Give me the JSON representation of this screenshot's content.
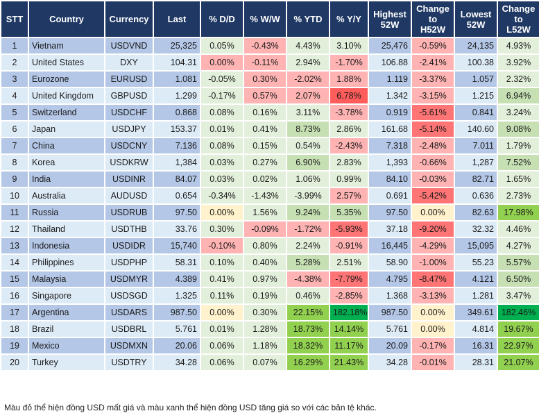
{
  "headers": [
    "STT",
    "Country",
    "Currency",
    "Last",
    "% D/D",
    "% W/W",
    "% YTD",
    "% Y/Y",
    "Highest 52W",
    "Change to H52W",
    "Lowest 52W",
    "Change to L52W"
  ],
  "rows": [
    {
      "stt": "1",
      "country": "Vietnam",
      "currency": "USDVND",
      "last": "25,325",
      "dd": [
        "0.05%",
        "g"
      ],
      "ww": [
        "-0.43%",
        "r"
      ],
      "ytd": [
        "4.43%",
        "g"
      ],
      "yy": [
        "3.10%",
        "g"
      ],
      "high": "25,476",
      "chh": [
        "-0.59%",
        "r"
      ],
      "low": "24,135",
      "chl": [
        "4.93%",
        "g"
      ]
    },
    {
      "stt": "2",
      "country": "United States",
      "currency": "DXY",
      "last": "104.31",
      "dd": [
        "0.00%",
        "r"
      ],
      "ww": [
        "-0.11%",
        "r"
      ],
      "ytd": [
        "2.94%",
        "g"
      ],
      "yy": [
        "-1.70%",
        "r"
      ],
      "high": "106.88",
      "chh": [
        "-2.41%",
        "r"
      ],
      "low": "100.38",
      "chl": [
        "3.92%",
        "g"
      ]
    },
    {
      "stt": "3",
      "country": "Eurozone",
      "currency": "EURUSD",
      "last": "1.081",
      "dd": [
        "-0.05%",
        "g"
      ],
      "ww": [
        "0.30%",
        "r"
      ],
      "ytd": [
        "-2.02%",
        "r"
      ],
      "yy": [
        "1.88%",
        "r"
      ],
      "high": "1.119",
      "chh": [
        "-3.37%",
        "r"
      ],
      "low": "1.057",
      "chl": [
        "2.32%",
        "g"
      ]
    },
    {
      "stt": "4",
      "country": "United Kingdom",
      "currency": "GBPUSD",
      "last": "1.299",
      "dd": [
        "-0.17%",
        "g"
      ],
      "ww": [
        "0.57%",
        "r"
      ],
      "ytd": [
        "2.07%",
        "r"
      ],
      "yy": [
        "6.78%",
        "RR"
      ],
      "high": "1.342",
      "chh": [
        "-3.15%",
        "r"
      ],
      "low": "1.215",
      "chl": [
        "6.94%",
        "G"
      ]
    },
    {
      "stt": "5",
      "country": "Switzerland",
      "currency": "USDCHF",
      "last": "0.868",
      "dd": [
        "0.08%",
        "g"
      ],
      "ww": [
        "0.16%",
        "g"
      ],
      "ytd": [
        "3.11%",
        "g"
      ],
      "yy": [
        "-3.78%",
        "r"
      ],
      "high": "0.919",
      "chh": [
        "-5.61%",
        "R"
      ],
      "low": "0.841",
      "chl": [
        "3.24%",
        "g"
      ]
    },
    {
      "stt": "6",
      "country": "Japan",
      "currency": "USDJPY",
      "last": "153.37",
      "dd": [
        "0.01%",
        "g"
      ],
      "ww": [
        "0.41%",
        "g"
      ],
      "ytd": [
        "8.73%",
        "G"
      ],
      "yy": [
        "2.86%",
        "g"
      ],
      "high": "161.68",
      "chh": [
        "-5.14%",
        "R"
      ],
      "low": "140.60",
      "chl": [
        "9.08%",
        "G"
      ]
    },
    {
      "stt": "7",
      "country": "China",
      "currency": "USDCNY",
      "last": "7.136",
      "dd": [
        "0.08%",
        "g"
      ],
      "ww": [
        "0.15%",
        "g"
      ],
      "ytd": [
        "0.54%",
        "g"
      ],
      "yy": [
        "-2.43%",
        "r"
      ],
      "high": "7.318",
      "chh": [
        "-2.48%",
        "r"
      ],
      "low": "7.011",
      "chl": [
        "1.79%",
        "g"
      ]
    },
    {
      "stt": "8",
      "country": "Korea",
      "currency": "USDKRW",
      "last": "1,384",
      "dd": [
        "0.03%",
        "g"
      ],
      "ww": [
        "0.27%",
        "g"
      ],
      "ytd": [
        "6.90%",
        "G"
      ],
      "yy": [
        "2.83%",
        "g"
      ],
      "high": "1,393",
      "chh": [
        "-0.66%",
        "r"
      ],
      "low": "1,287",
      "chl": [
        "7.52%",
        "G"
      ]
    },
    {
      "stt": "9",
      "country": "India",
      "currency": "USDINR",
      "last": "84.07",
      "dd": [
        "0.03%",
        "g"
      ],
      "ww": [
        "0.02%",
        "g"
      ],
      "ytd": [
        "1.06%",
        "g"
      ],
      "yy": [
        "0.99%",
        "g"
      ],
      "high": "84.10",
      "chh": [
        "-0.03%",
        "r"
      ],
      "low": "82.71",
      "chl": [
        "1.65%",
        "g"
      ]
    },
    {
      "stt": "10",
      "country": "Australia",
      "currency": "AUDUSD",
      "last": "0.654",
      "dd": [
        "-0.34%",
        "g"
      ],
      "ww": [
        "-1.43%",
        "g"
      ],
      "ytd": [
        "-3.99%",
        "g"
      ],
      "yy": [
        "2.57%",
        "r"
      ],
      "high": "0.691",
      "chh": [
        "-5.42%",
        "R"
      ],
      "low": "0.636",
      "chl": [
        "2.73%",
        "g"
      ]
    },
    {
      "stt": "11",
      "country": "Russia",
      "currency": "USDRUB",
      "last": "97.50",
      "dd": [
        "0.00%",
        "y"
      ],
      "ww": [
        "1.56%",
        "g"
      ],
      "ytd": [
        "9.24%",
        "G"
      ],
      "yy": [
        "5.35%",
        "G"
      ],
      "high": "97.50",
      "chh": [
        "0.00%",
        "y"
      ],
      "low": "82.63",
      "chl": [
        "17.98%",
        "GG"
      ]
    },
    {
      "stt": "12",
      "country": "Thailand",
      "currency": "USDTHB",
      "last": "33.76",
      "dd": [
        "0.30%",
        "g"
      ],
      "ww": [
        "-0.09%",
        "r"
      ],
      "ytd": [
        "-1.72%",
        "r"
      ],
      "yy": [
        "-5.93%",
        "R"
      ],
      "high": "37.18",
      "chh": [
        "-9.20%",
        "R"
      ],
      "low": "32.32",
      "chl": [
        "4.46%",
        "g"
      ]
    },
    {
      "stt": "13",
      "country": "Indonesia",
      "currency": "USDIDR",
      "last": "15,740",
      "dd": [
        "-0.10%",
        "r"
      ],
      "ww": [
        "0.80%",
        "g"
      ],
      "ytd": [
        "2.24%",
        "g"
      ],
      "yy": [
        "-0.91%",
        "r"
      ],
      "high": "16,445",
      "chh": [
        "-4.29%",
        "r"
      ],
      "low": "15,095",
      "chl": [
        "4.27%",
        "g"
      ]
    },
    {
      "stt": "14",
      "country": "Philippines",
      "currency": "USDPHP",
      "last": "58.31",
      "dd": [
        "0.10%",
        "g"
      ],
      "ww": [
        "0.40%",
        "g"
      ],
      "ytd": [
        "5.28%",
        "G"
      ],
      "yy": [
        "2.51%",
        "g"
      ],
      "high": "58.90",
      "chh": [
        "-1.00%",
        "r"
      ],
      "low": "55.23",
      "chl": [
        "5.57%",
        "G"
      ]
    },
    {
      "stt": "15",
      "country": "Malaysia",
      "currency": "USDMYR",
      "last": "4.389",
      "dd": [
        "0.41%",
        "g"
      ],
      "ww": [
        "0.97%",
        "g"
      ],
      "ytd": [
        "-4.38%",
        "r"
      ],
      "yy": [
        "-7.79%",
        "R"
      ],
      "high": "4.795",
      "chh": [
        "-8.47%",
        "R"
      ],
      "low": "4.121",
      "chl": [
        "6.50%",
        "G"
      ]
    },
    {
      "stt": "16",
      "country": "Singapore",
      "currency": "USDSGD",
      "last": "1.325",
      "dd": [
        "0.11%",
        "g"
      ],
      "ww": [
        "0.19%",
        "g"
      ],
      "ytd": [
        "0.46%",
        "g"
      ],
      "yy": [
        "-2.85%",
        "r"
      ],
      "high": "1.368",
      "chh": [
        "-3.13%",
        "r"
      ],
      "low": "1.281",
      "chl": [
        "3.47%",
        "g"
      ]
    },
    {
      "stt": "17",
      "country": "Argentina",
      "currency": "USDARS",
      "last": "987.50",
      "dd": [
        "0.00%",
        "y"
      ],
      "ww": [
        "0.30%",
        "g"
      ],
      "ytd": [
        "22.15%",
        "GG"
      ],
      "yy": [
        "182.18%",
        "GGG"
      ],
      "high": "987.50",
      "chh": [
        "0.00%",
        "y"
      ],
      "low": "349.61",
      "chl": [
        "182.46%",
        "GGG"
      ]
    },
    {
      "stt": "18",
      "country": "Brazil",
      "currency": "USDBRL",
      "last": "5.761",
      "dd": [
        "0.01%",
        "g"
      ],
      "ww": [
        "1.28%",
        "g"
      ],
      "ytd": [
        "18.73%",
        "GG"
      ],
      "yy": [
        "14.14%",
        "GG"
      ],
      "high": "5.761",
      "chh": [
        "0.00%",
        "y"
      ],
      "low": "4.814",
      "chl": [
        "19.67%",
        "GG"
      ]
    },
    {
      "stt": "19",
      "country": "Mexico",
      "currency": "USDMXN",
      "last": "20.06",
      "dd": [
        "0.06%",
        "g"
      ],
      "ww": [
        "1.18%",
        "g"
      ],
      "ytd": [
        "18.32%",
        "GG"
      ],
      "yy": [
        "11.17%",
        "GG"
      ],
      "high": "20.09",
      "chh": [
        "-0.17%",
        "r"
      ],
      "low": "16.31",
      "chl": [
        "22.97%",
        "GG"
      ]
    },
    {
      "stt": "20",
      "country": "Turkey",
      "currency": "USDTRY",
      "last": "34.28",
      "dd": [
        "0.06%",
        "g"
      ],
      "ww": [
        "0.07%",
        "g"
      ],
      "ytd": [
        "16.29%",
        "GG"
      ],
      "yy": [
        "21.43%",
        "GG"
      ],
      "high": "34.28",
      "chh": [
        "-0.01%",
        "r"
      ],
      "low": "28.31",
      "chl": [
        "21.07%",
        "GG"
      ]
    }
  ],
  "note": "Màu đỏ thể hiện đồng USD mất giá và màu xanh thể hiện đồng USD tăng giá so với các bản tệ khác.",
  "colors": {
    "header_bg": "#1f3864",
    "row_odd": "#b4c7e7",
    "row_even": "#ddebf7",
    "light_green": "#e2efda",
    "medium_green": "#c6e0b4",
    "bright_green": "#92d050",
    "dark_green": "#00b050",
    "light_red": "#ffb3b3",
    "strong_red": "#ff7575",
    "neutral_yellow": "#fff2cc"
  }
}
